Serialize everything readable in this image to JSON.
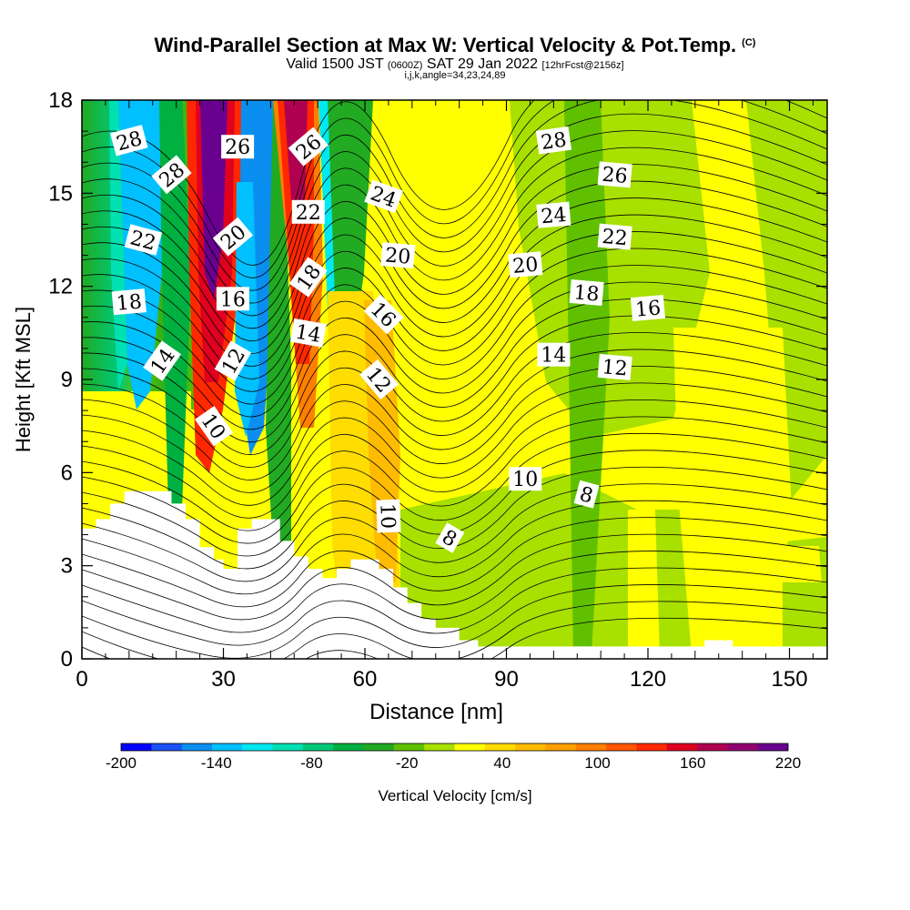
{
  "header": {
    "title": "Wind-Parallel Section at Max W: Vertical Velocity & Pot.Temp.",
    "copyright_mark": "(C)",
    "valid_prefix": "Valid 1500 JST",
    "zulu": "(0600Z)",
    "valid_date": "SAT 29 Jan 2022",
    "forecast_info": "[12hrFcst@2156z]",
    "grid_info": "i,j,k,angle=34,23,24,89"
  },
  "chart_data": {
    "type": "heatmap",
    "xlabel": "Distance [nm]",
    "ylabel": "Height [Kft MSL]",
    "xlim": [
      0,
      158
    ],
    "ylim": [
      0,
      18
    ],
    "xticks": [
      0,
      30,
      60,
      90,
      120,
      150
    ],
    "yticks": [
      0,
      3,
      6,
      9,
      12,
      15,
      18
    ],
    "colorbar": {
      "label": "Vertical Velocity [cm/s]",
      "tick_labels": [
        -200,
        -140,
        -80,
        -20,
        40,
        100,
        160,
        220
      ],
      "levels": [
        -200,
        -180,
        -160,
        -140,
        -120,
        -100,
        -80,
        -60,
        -40,
        -20,
        0,
        20,
        40,
        60,
        80,
        100,
        120,
        140,
        160,
        180,
        200,
        220
      ],
      "colors": [
        "#0000ff",
        "#1c52f5",
        "#0a8ff0",
        "#00c0ff",
        "#00e8f0",
        "#00e0b0",
        "#00c878",
        "#00b040",
        "#22aa22",
        "#60c000",
        "#a8e000",
        "#ffff00",
        "#ffdd00",
        "#ffbb00",
        "#ffa000",
        "#ff7f00",
        "#ff5500",
        "#ff2800",
        "#e00020",
        "#b00050",
        "#900070",
        "#6a0090"
      ]
    },
    "contour_labels": [
      {
        "text": "28",
        "x": 10,
        "y": 16.7,
        "rot": 15
      },
      {
        "text": "28",
        "x": 19,
        "y": 15.6,
        "rot": 40
      },
      {
        "text": "26",
        "x": 33,
        "y": 16.5,
        "rot": 0
      },
      {
        "text": "26",
        "x": 48,
        "y": 16.5,
        "rot": 40
      },
      {
        "text": "22",
        "x": 13,
        "y": 13.5,
        "rot": -15
      },
      {
        "text": "20",
        "x": 32,
        "y": 13.6,
        "rot": 40
      },
      {
        "text": "22",
        "x": 48,
        "y": 14.4,
        "rot": 0
      },
      {
        "text": "24",
        "x": 64,
        "y": 14.9,
        "rot": -20
      },
      {
        "text": "18",
        "x": 10,
        "y": 11.5,
        "rot": 5
      },
      {
        "text": "16",
        "x": 32,
        "y": 11.6,
        "rot": 0
      },
      {
        "text": "18",
        "x": 48,
        "y": 12.3,
        "rot": 55
      },
      {
        "text": "20",
        "x": 67,
        "y": 13.0,
        "rot": -5
      },
      {
        "text": "14",
        "x": 17,
        "y": 9.6,
        "rot": 55
      },
      {
        "text": "12",
        "x": 32,
        "y": 9.6,
        "rot": 60
      },
      {
        "text": "14",
        "x": 48,
        "y": 10.5,
        "rot": -10
      },
      {
        "text": "16",
        "x": 64,
        "y": 11.1,
        "rot": -45
      },
      {
        "text": "12",
        "x": 63,
        "y": 9.0,
        "rot": -50
      },
      {
        "text": "10",
        "x": 28,
        "y": 7.5,
        "rot": -55
      },
      {
        "text": "10",
        "x": 65,
        "y": 4.6,
        "rot": -88
      },
      {
        "text": "8",
        "x": 78,
        "y": 3.9,
        "rot": -30
      },
      {
        "text": "28",
        "x": 100,
        "y": 16.7,
        "rot": 8
      },
      {
        "text": "26",
        "x": 113,
        "y": 15.6,
        "rot": -5
      },
      {
        "text": "24",
        "x": 100,
        "y": 14.3,
        "rot": 5
      },
      {
        "text": "22",
        "x": 113,
        "y": 13.6,
        "rot": -5
      },
      {
        "text": "20",
        "x": 94,
        "y": 12.7,
        "rot": 5
      },
      {
        "text": "18",
        "x": 107,
        "y": 11.8,
        "rot": -5
      },
      {
        "text": "16",
        "x": 120,
        "y": 11.3,
        "rot": 5
      },
      {
        "text": "14",
        "x": 100,
        "y": 9.8,
        "rot": 0
      },
      {
        "text": "12",
        "x": 113,
        "y": 9.4,
        "rot": -5
      },
      {
        "text": "10",
        "x": 94,
        "y": 5.8,
        "rot": 0
      },
      {
        "text": "8",
        "x": 107,
        "y": 5.3,
        "rot": -15
      }
    ]
  }
}
